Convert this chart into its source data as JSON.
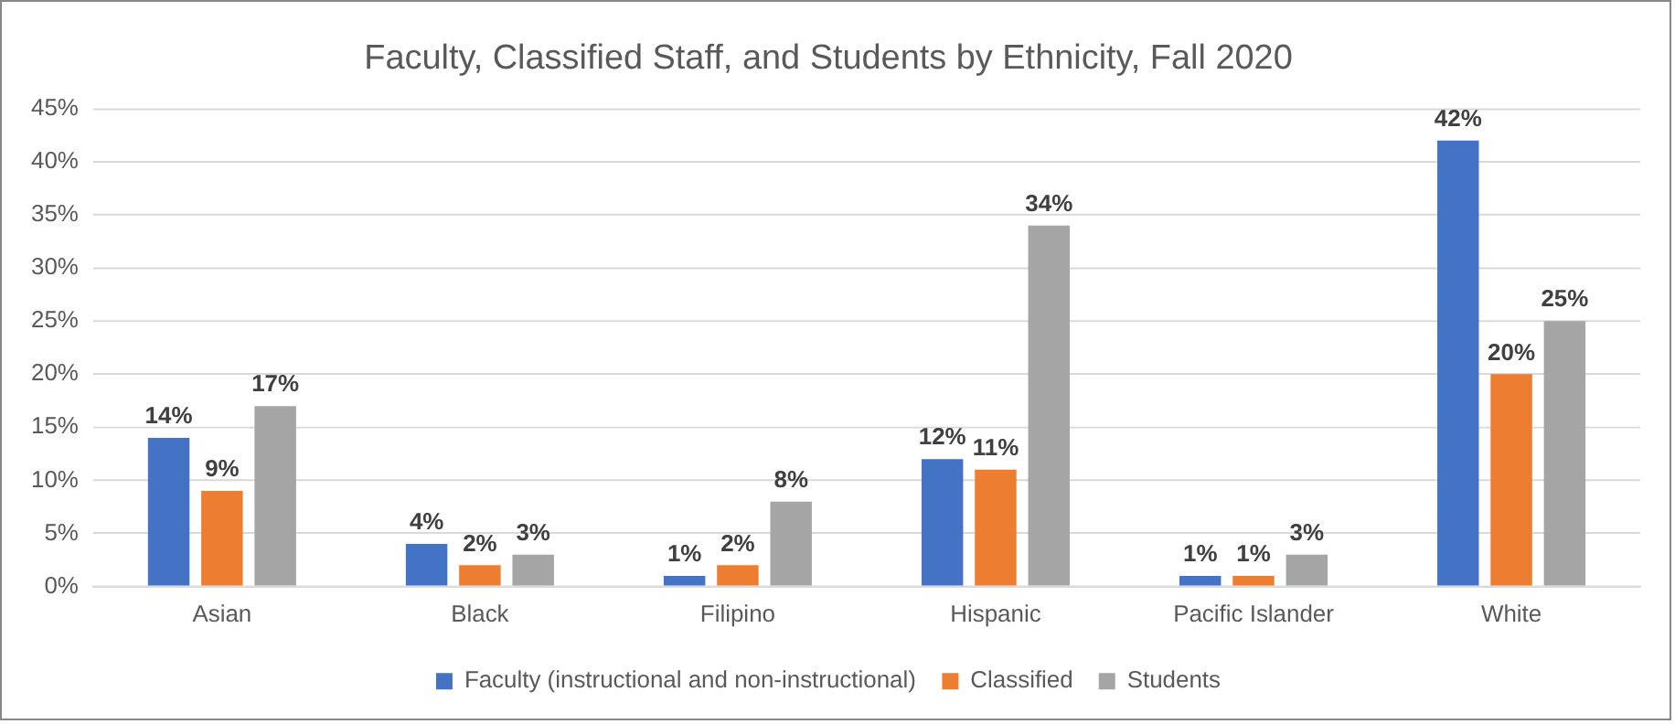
{
  "chart_data": {
    "type": "bar",
    "title": "Faculty, Classified Staff, and Students by Ethnicity, Fall 2020",
    "categories": [
      "Asian",
      "Black",
      "Filipino",
      "Hispanic",
      "Pacific Islander",
      "White"
    ],
    "series": [
      {
        "name": "Faculty (instructional and non-instructional)",
        "color": "#4472c4",
        "values": [
          14,
          4,
          1,
          12,
          1,
          42
        ],
        "value_labels": [
          "14%",
          "4%",
          "1%",
          "12%",
          "1%",
          "42%"
        ]
      },
      {
        "name": "Classified",
        "color": "#ed7d31",
        "values": [
          9,
          2,
          2,
          11,
          1,
          20
        ],
        "value_labels": [
          "9%",
          "2%",
          "2%",
          "11%",
          "1%",
          "20%"
        ]
      },
      {
        "name": "Students",
        "color": "#a5a5a5",
        "values": [
          17,
          3,
          8,
          34,
          3,
          25
        ],
        "value_labels": [
          "17%",
          "3%",
          "8%",
          "34%",
          "3%",
          "25%"
        ]
      }
    ],
    "ylim": [
      0,
      45
    ],
    "yticks": [
      {
        "value": 0,
        "label": "0%"
      },
      {
        "value": 5,
        "label": "5%"
      },
      {
        "value": 10,
        "label": "10%"
      },
      {
        "value": 15,
        "label": "15%"
      },
      {
        "value": 20,
        "label": "20%"
      },
      {
        "value": 25,
        "label": "25%"
      },
      {
        "value": 30,
        "label": "30%"
      },
      {
        "value": 35,
        "label": "35%"
      },
      {
        "value": 40,
        "label": "40%"
      },
      {
        "value": 45,
        "label": "45%"
      }
    ],
    "grid": "y",
    "legend": "bottom"
  }
}
